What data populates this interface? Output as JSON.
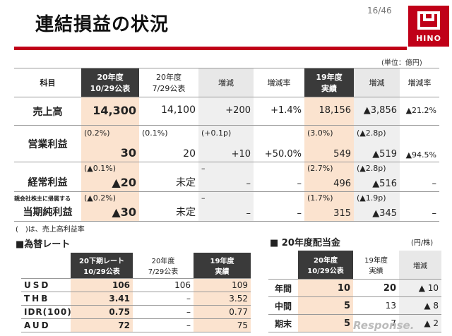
{
  "page": {
    "number": "16/46",
    "title": "連結損益の状況",
    "unit": "(単位：億円)",
    "brand": "HINO"
  },
  "main": {
    "headers": [
      "科目",
      "20年度\n10/29公表",
      "20年度\n7/29公表",
      "増減",
      "増減率",
      "19年度\n実績",
      "増減",
      "増減率"
    ],
    "rows": [
      {
        "item": "売上高",
        "pre": "",
        "c1": "14,300",
        "c2": "14,100",
        "c3": "+200",
        "c4": "+1.4%",
        "c5": "18,156",
        "c6": "▲3,856",
        "c7": "▲21.2%",
        "s1": "",
        "s2": "",
        "s3": "",
        "s5": "",
        "s6": ""
      },
      {
        "item": "営業利益",
        "pre": "",
        "c1": "30",
        "c2": "20",
        "c3": "+10",
        "c4": "+50.0%",
        "c5": "549",
        "c6": "▲519",
        "c7": "▲94.5%",
        "s1": "(0.2%)",
        "s2": "(0.1%)",
        "s3": "(+0.1p)",
        "s5": "(3.0%)",
        "s6": "(▲2.8p)"
      },
      {
        "item": "経常利益",
        "pre": "",
        "c1": "▲20",
        "c2": "未定",
        "c3": "–",
        "c4": "–",
        "c5": "496",
        "c6": "▲516",
        "c7": "–",
        "s1": "(▲0.1%)",
        "s2": "",
        "s3": "–",
        "s5": "(2.7%)",
        "s6": "(▲2.8p)"
      },
      {
        "item": "当期純利益",
        "pre": "親会社株主に帰属する",
        "c1": "▲30",
        "c2": "未定",
        "c3": "–",
        "c4": "–",
        "c5": "315",
        "c6": "▲345",
        "c7": "–",
        "s1": "(▲0.2%)",
        "s2": "",
        "s3": "–",
        "s5": "(1.7%)",
        "s6": "(▲1.9p)"
      }
    ],
    "note": "(　)は、売上高利益率"
  },
  "fx": {
    "title": "■為替レート",
    "headers": [
      "",
      "20下期レート\n10/29公表",
      "20年度\n7/29公表",
      "19年度\n実績"
    ],
    "rows": [
      {
        "label": "USD",
        "a": "106",
        "b": "106",
        "c": "109"
      },
      {
        "label": "THB",
        "a": "3.41",
        "b": "–",
        "c": "3.52"
      },
      {
        "label": "IDR(100)",
        "a": "0.75",
        "b": "–",
        "c": "0.77"
      },
      {
        "label": "AUD",
        "a": "72",
        "b": "–",
        "c": "75"
      }
    ]
  },
  "dividend": {
    "title": "■ 20年度配当金",
    "unit": "(円/株)",
    "headers": [
      "",
      "20年度\n10/29公表",
      "19年度\n実績",
      "増減"
    ],
    "rows": [
      {
        "label": "年間",
        "a": "10",
        "b": "20",
        "c": "▲ 10"
      },
      {
        "label": "中間",
        "a": "5",
        "b": "13",
        "c": "▲ 8"
      },
      {
        "label": "期末",
        "a": "5",
        "b": "7",
        "c": "▲ 2"
      }
    ]
  },
  "watermark": "Response."
}
